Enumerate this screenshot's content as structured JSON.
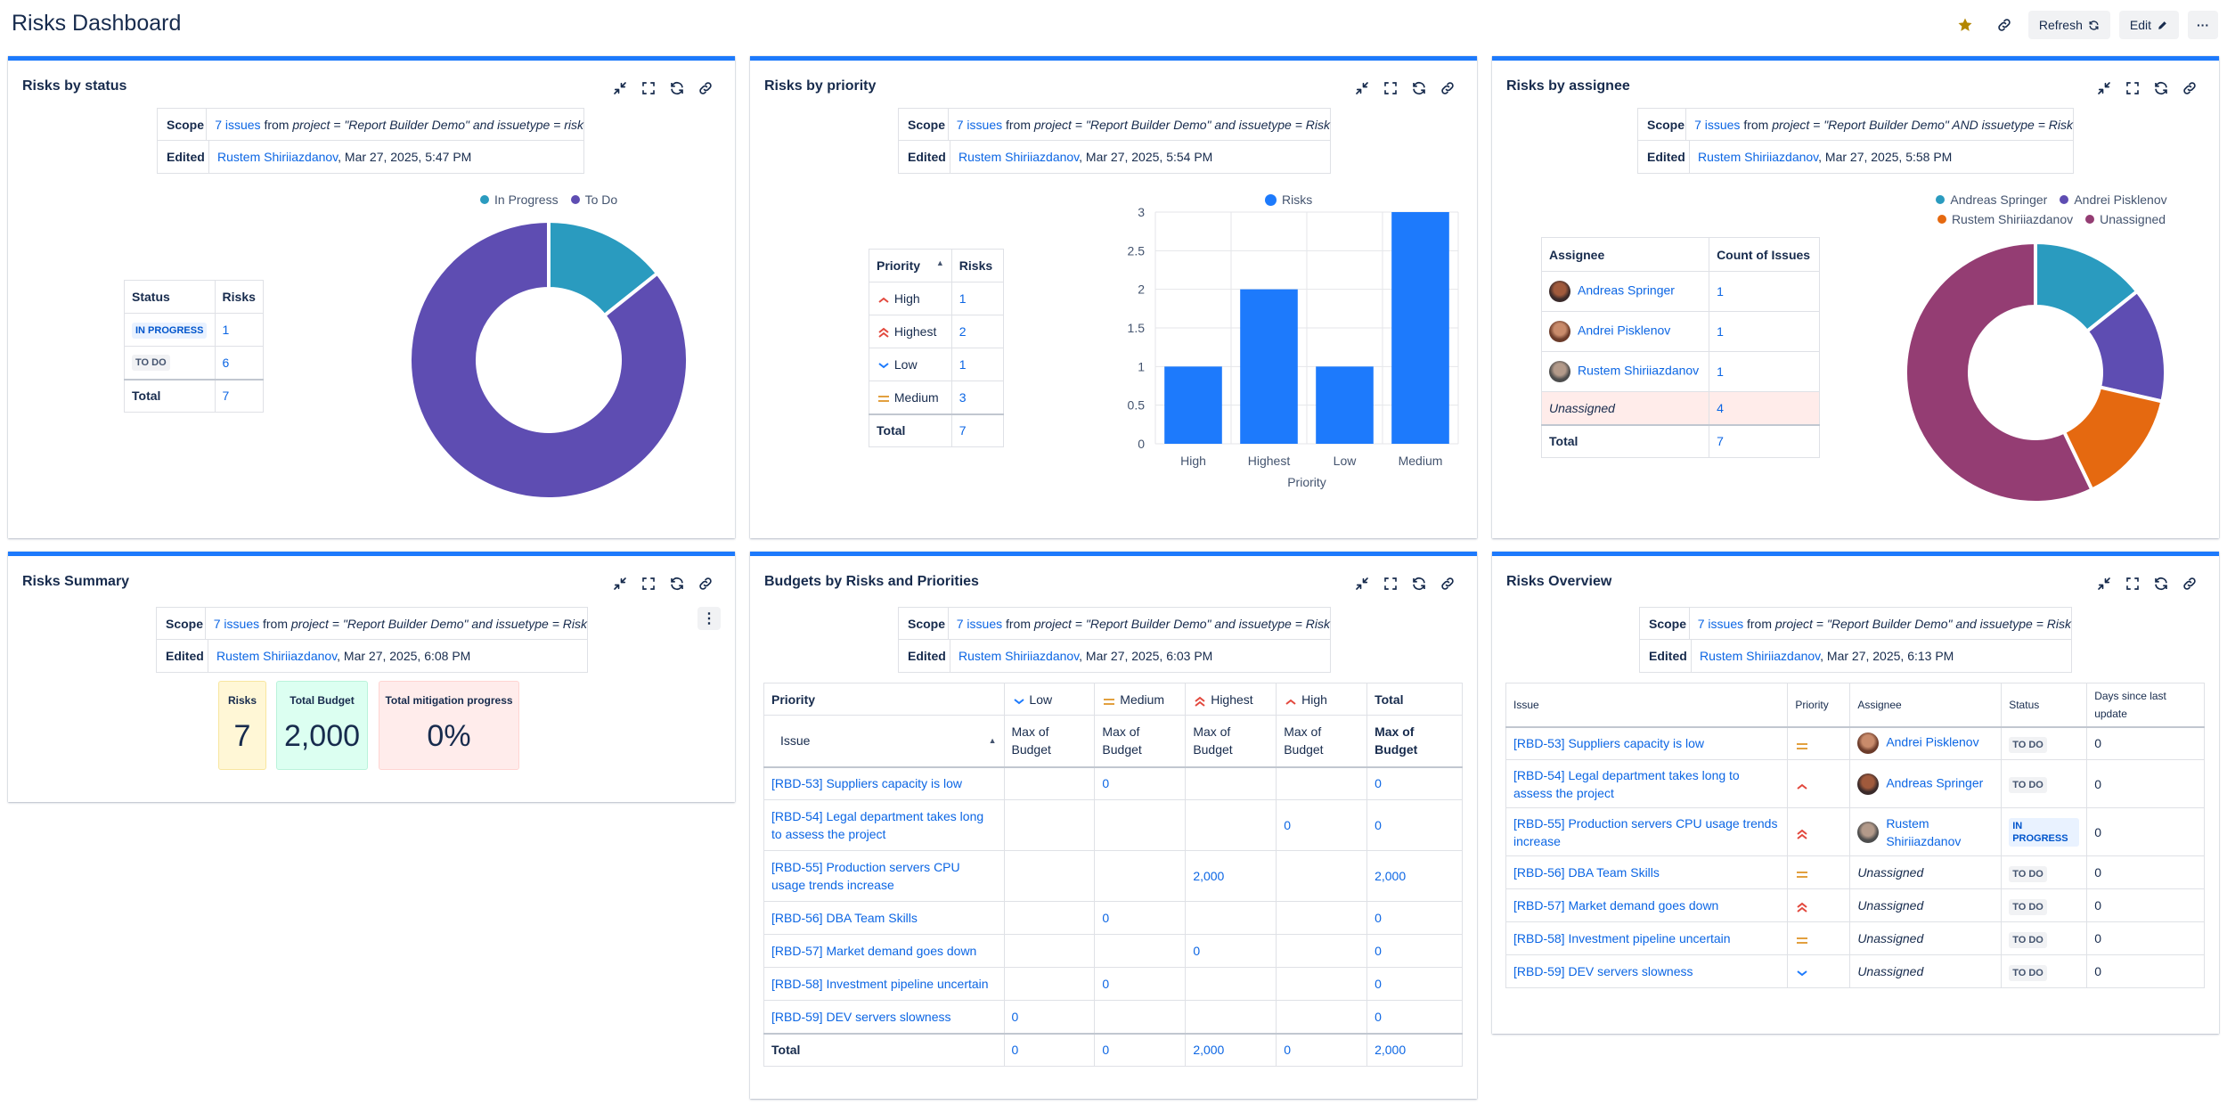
{
  "page": {
    "title": "Risks Dashboard"
  },
  "toolbar": {
    "refresh_label": "Refresh",
    "edit_label": "Edit",
    "more_label": "···"
  },
  "colors": {
    "accent": "#1d7afc",
    "in_progress": "#2a9bbf",
    "to_do": "#5e4db2",
    "bar": "#1d7afc",
    "rustem": "#e56910",
    "unassigned": "#943d73"
  },
  "scope_common": {
    "scope_key": "Scope",
    "edited_key": "Edited",
    "issues_link": "7 issues",
    "from_text": "from",
    "editor": "Rustem Shiriiazdanov"
  },
  "panels": {
    "status": {
      "title": "Risks by status",
      "query": "project = \"Report Builder Demo\" and issuetype = risk",
      "edited": ", Mar 27, 2025, 5:47 PM",
      "table": {
        "h1": "Status",
        "h2": "Risks",
        "rows": [
          {
            "label": "IN PROGRESS",
            "value": "1"
          },
          {
            "label": "TO DO",
            "value": "6"
          }
        ],
        "total_label": "Total",
        "total_value": "7"
      },
      "legend": [
        "In Progress",
        "To Do"
      ]
    },
    "priority": {
      "title": "Risks by priority",
      "query": "project = \"Report Builder Demo\" and issuetype = Risk",
      "edited": ", Mar 27, 2025, 5:54 PM",
      "table": {
        "h1": "Priority",
        "h2": "Risks",
        "rows": [
          {
            "label": "High",
            "value": "1"
          },
          {
            "label": "Highest",
            "value": "2"
          },
          {
            "label": "Low",
            "value": "1"
          },
          {
            "label": "Medium",
            "value": "3"
          }
        ],
        "total_label": "Total",
        "total_value": "7"
      },
      "legend": "Risks"
    },
    "assignee": {
      "title": "Risks by assignee",
      "query": "project = \"Report Builder Demo\" AND issuetype = Risk",
      "edited": ", Mar 27, 2025, 5:58 PM",
      "table": {
        "h1": "Assignee",
        "h2": "Count of Issues",
        "rows": [
          {
            "label": "Andreas Springer",
            "value": "1"
          },
          {
            "label": "Andrei Pisklenov",
            "value": "1"
          },
          {
            "label": "Rustem Shiriiazdanov",
            "value": "1"
          },
          {
            "label": "Unassigned",
            "value": "4"
          }
        ],
        "total_label": "Total",
        "total_value": "7"
      },
      "legend": [
        "Andreas Springer",
        "Andrei Pisklenov",
        "Rustem Shiriiazdanov",
        "Unassigned"
      ]
    },
    "summary": {
      "title": "Risks Summary",
      "query": "project = \"Report Builder Demo\" and issuetype = Risk",
      "edited": ", Mar 27, 2025, 6:08 PM",
      "kpis": [
        {
          "label": "Risks",
          "value": "7"
        },
        {
          "label": "Total Budget",
          "value": "2,000"
        },
        {
          "label": "Total mitigation progress",
          "value": "0%"
        }
      ]
    },
    "budgets": {
      "title": "Budgets by Risks and Priorities",
      "query": "project = \"Report Builder Demo\" and issuetype = Risk",
      "edited": ", Mar 27, 2025, 6:03 PM",
      "header": {
        "priority": "Priority",
        "issue": "Issue",
        "low": "Low",
        "medium": "Medium",
        "highest": "Highest",
        "high": "High",
        "total": "Total",
        "max_budget": "Max of Budget"
      },
      "rows": [
        {
          "issue": "[RBD-53] Suppliers capacity is low",
          "low": "",
          "medium": "0",
          "highest": "",
          "high": "",
          "total": "0"
        },
        {
          "issue": "[RBD-54] Legal department takes long to assess the project",
          "low": "",
          "medium": "",
          "highest": "",
          "high": "0",
          "total": "0"
        },
        {
          "issue": "[RBD-55] Production servers CPU usage trends increase",
          "low": "",
          "medium": "",
          "highest": "2,000",
          "high": "",
          "total": "2,000"
        },
        {
          "issue": "[RBD-56] DBA Team Skills",
          "low": "",
          "medium": "0",
          "highest": "",
          "high": "",
          "total": "0"
        },
        {
          "issue": "[RBD-57] Market demand goes down",
          "low": "",
          "medium": "",
          "highest": "0",
          "high": "",
          "total": "0"
        },
        {
          "issue": "[RBD-58] Investment pipeline uncertain",
          "low": "",
          "medium": "0",
          "highest": "",
          "high": "",
          "total": "0"
        },
        {
          "issue": "[RBD-59] DEV servers slowness",
          "low": "0",
          "medium": "",
          "highest": "",
          "high": "",
          "total": "0"
        }
      ],
      "total": {
        "label": "Total",
        "low": "0",
        "medium": "0",
        "highest": "2,000",
        "high": "0",
        "total": "2,000"
      }
    },
    "overview": {
      "title": "Risks Overview",
      "query": "project = \"Report Builder Demo\" and issuetype = Risk",
      "edited": ", Mar 27, 2025, 6:13 PM",
      "header": {
        "issue": "Issue",
        "priority": "Priority",
        "assignee": "Assignee",
        "status": "Status",
        "days": "Days since last update"
      },
      "rows": [
        {
          "issue": "[RBD-53] Suppliers capacity is low",
          "priority": "medium",
          "assignee": "Andrei Pisklenov",
          "status": "TO DO",
          "days": "0"
        },
        {
          "issue": "[RBD-54] Legal department takes long to assess the project",
          "priority": "high",
          "assignee": "Andreas Springer",
          "status": "TO DO",
          "days": "0"
        },
        {
          "issue": "[RBD-55] Production servers CPU usage trends increase",
          "priority": "highest",
          "assignee": "Rustem Shiriiazdanov",
          "status": "IN PROGRESS",
          "days": "0"
        },
        {
          "issue": "[RBD-56] DBA Team Skills",
          "priority": "medium",
          "assignee": "Unassigned",
          "status": "TO DO",
          "days": "0"
        },
        {
          "issue": "[RBD-57] Market demand goes down",
          "priority": "highest",
          "assignee": "Unassigned",
          "status": "TO DO",
          "days": "0"
        },
        {
          "issue": "[RBD-58] Investment pipeline uncertain",
          "priority": "medium",
          "assignee": "Unassigned",
          "status": "TO DO",
          "days": "0"
        },
        {
          "issue": "[RBD-59] DEV servers slowness",
          "priority": "low",
          "assignee": "Unassigned",
          "status": "TO DO",
          "days": "0"
        }
      ]
    }
  },
  "chart_data": [
    {
      "type": "pie",
      "title": "",
      "categories": [
        "In Progress",
        "To Do"
      ],
      "values": [
        1,
        6
      ],
      "legend": "top"
    },
    {
      "type": "bar",
      "title": "",
      "categories": [
        "High",
        "Highest",
        "Low",
        "Medium"
      ],
      "series": [
        {
          "name": "Risks",
          "values": [
            1,
            2,
            1,
            3
          ]
        }
      ],
      "xlabel": "Priority",
      "ylabel": "",
      "ylim": [
        0,
        3
      ],
      "yticks": [
        "0",
        "0.5",
        "1",
        "1.5",
        "2",
        "2.5",
        "3"
      ],
      "grid": true,
      "legend": "top"
    },
    {
      "type": "pie",
      "title": "",
      "categories": [
        "Andreas Springer",
        "Andrei Pisklenov",
        "Rustem Shiriiazdanov",
        "Unassigned"
      ],
      "values": [
        1,
        1,
        1,
        4
      ],
      "legend": "top"
    }
  ]
}
